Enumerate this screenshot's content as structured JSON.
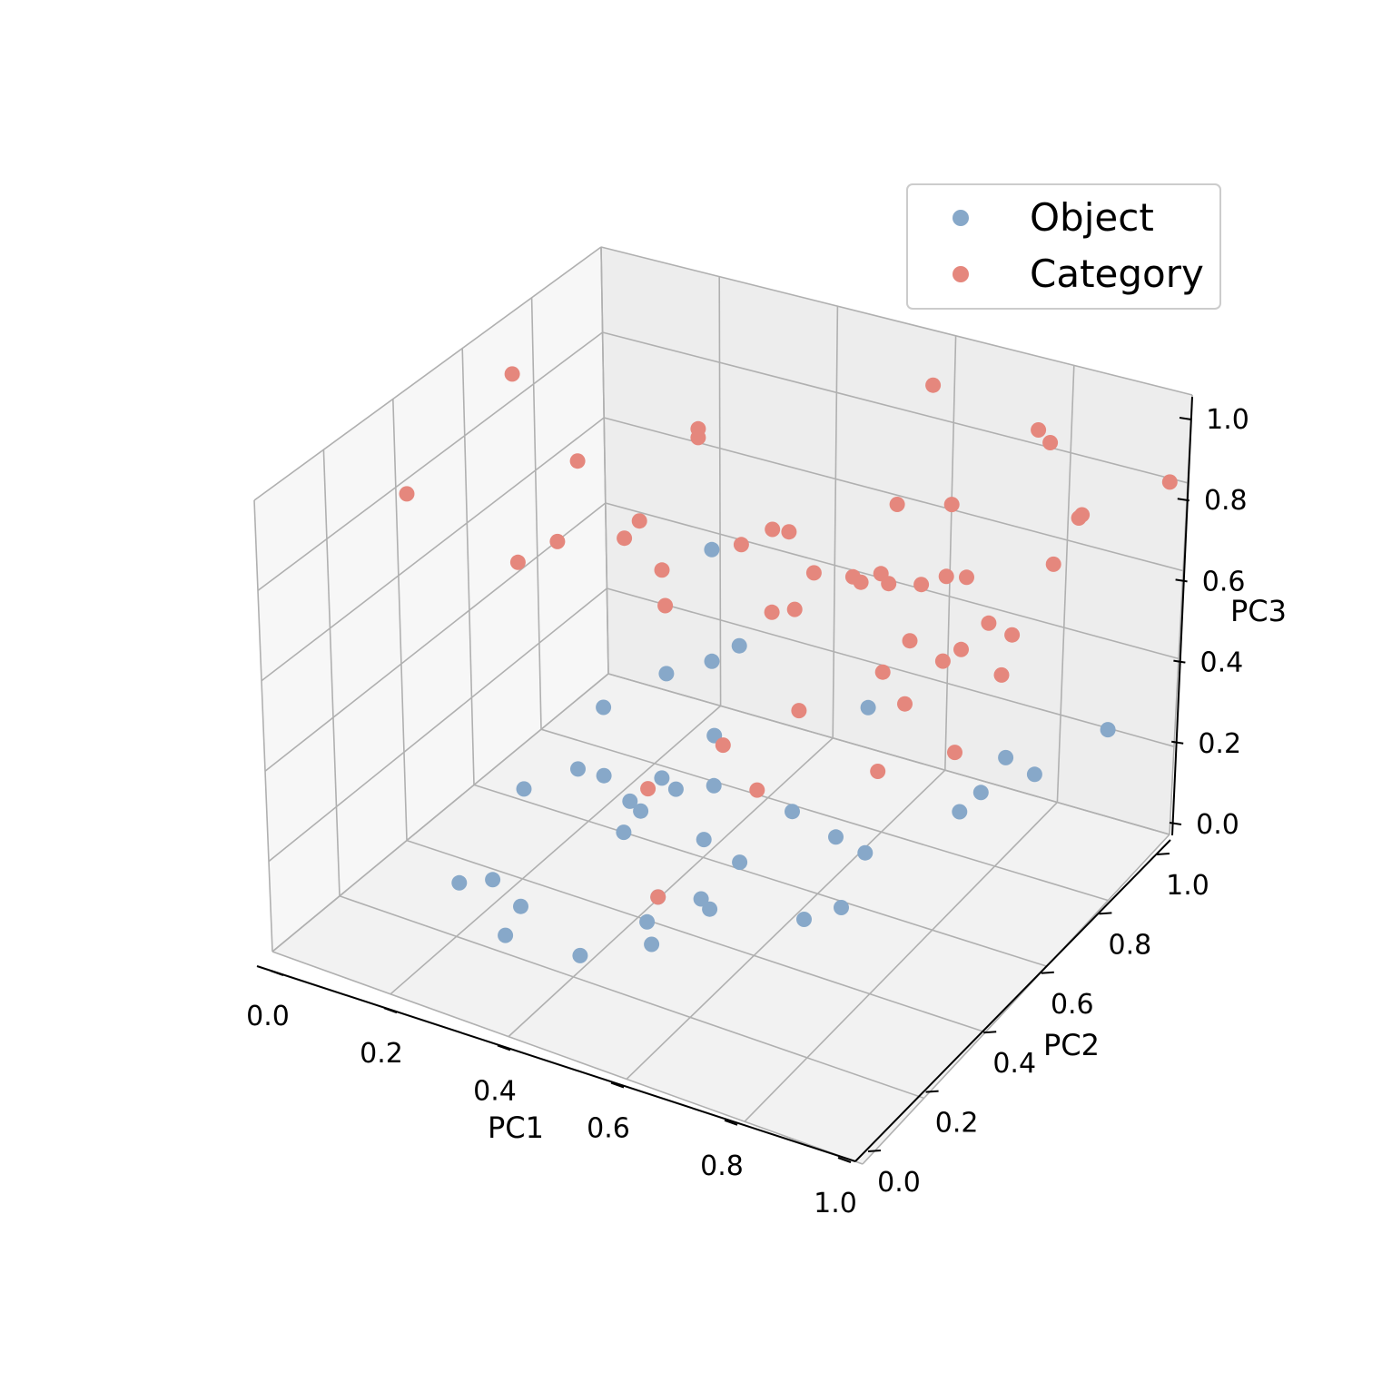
{
  "chart_data": {
    "type": "scatter",
    "projection": "3d",
    "xlabel": "PC1",
    "ylabel": "PC2",
    "zlabel": "PC3",
    "xlim": [
      0,
      1
    ],
    "ylim": [
      0,
      1
    ],
    "zlim": [
      0,
      1
    ],
    "ticks": [
      "0.0",
      "0.2",
      "0.4",
      "0.6",
      "0.8",
      "1.0"
    ],
    "grid": true,
    "legend_position": "top-right",
    "series": [
      {
        "name": "Object",
        "color": "#87a8c9",
        "points": [
          [
            0.36,
            0.56,
            0.43
          ],
          [
            0.31,
            0.38,
            0.31
          ],
          [
            0.4,
            0.71,
            0.41
          ],
          [
            0.24,
            0.58,
            0.29
          ],
          [
            0.33,
            0.75,
            0.32
          ],
          [
            0.46,
            0.41,
            0.31
          ],
          [
            0.32,
            0.44,
            0.26
          ],
          [
            0.24,
            0.34,
            0.26
          ],
          [
            0.34,
            0.74,
            0.16
          ],
          [
            0.57,
            0.71,
            0.04
          ],
          [
            0.46,
            0.25,
            0.32
          ],
          [
            0.54,
            0.86,
            0.22
          ],
          [
            0.43,
            0.58,
            0.19
          ],
          [
            0.37,
            0.43,
            0.23
          ],
          [
            0.36,
            0.48,
            0.17
          ],
          [
            0.34,
            0.58,
            0.17
          ],
          [
            0.31,
            0.12,
            0.23
          ],
          [
            0.58,
            0.27,
            0.21
          ],
          [
            0.74,
            0.49,
            0.23
          ],
          [
            0.23,
            0.16,
            0.16
          ],
          [
            0.76,
            0.9,
            0.16
          ],
          [
            0.49,
            0.28,
            0.06
          ],
          [
            0.3,
            0.22,
            0.1
          ],
          [
            0.58,
            0.39,
            0.21
          ],
          [
            0.93,
            0.91,
            0.28
          ],
          [
            0.69,
            0.51,
            0.07
          ],
          [
            0.9,
            0.73,
            0.3
          ],
          [
            0.44,
            0.15,
            0.1
          ],
          [
            0.62,
            0.48,
            0.28
          ],
          [
            0.48,
            0.46,
            0.17
          ],
          [
            0.83,
            0.69,
            0.26
          ],
          [
            0.44,
            0.39,
            0.07
          ],
          [
            0.81,
            0.66,
            0.23
          ],
          [
            0.68,
            0.41,
            0.11
          ],
          [
            0.29,
            0.19,
            0.05
          ],
          [
            0.46,
            0.32,
            0.07
          ],
          [
            0.54,
            0.37,
            0.1
          ],
          [
            0.52,
            0.41,
            0.88
          ]
        ]
      },
      {
        "name": "Category",
        "color": "#e5877d",
        "points": [
          [
            0.58,
            0.97,
            0.9
          ],
          [
            0.1,
            0.57,
            1.0
          ],
          [
            0.33,
            0.71,
            0.86
          ],
          [
            0.33,
            0.71,
            0.88
          ],
          [
            0.76,
            0.97,
            0.86
          ],
          [
            0.77,
            0.99,
            0.82
          ],
          [
            0.03,
            0.38,
            0.81
          ],
          [
            0.23,
            0.53,
            0.88
          ],
          [
            0.36,
            0.93,
            0.51
          ],
          [
            0.47,
            0.59,
            0.75
          ],
          [
            0.86,
            0.92,
            0.73
          ],
          [
            0.37,
            0.53,
            0.69
          ],
          [
            0.64,
            0.71,
            0.67
          ],
          [
            0.45,
            0.72,
            0.69
          ],
          [
            0.29,
            0.56,
            0.71
          ],
          [
            0.6,
            0.83,
            0.73
          ],
          [
            0.66,
            0.89,
            0.71
          ],
          [
            0.27,
            0.64,
            0.69
          ],
          [
            0.2,
            0.52,
            0.69
          ],
          [
            0.15,
            0.49,
            0.64
          ],
          [
            0.46,
            0.83,
            0.52
          ],
          [
            0.56,
            0.77,
            0.59
          ],
          [
            0.5,
            0.7,
            0.54
          ],
          [
            0.59,
            0.74,
            0.61
          ],
          [
            0.67,
            0.86,
            0.57
          ],
          [
            0.61,
            0.79,
            0.58
          ],
          [
            0.86,
            0.93,
            0.73
          ],
          [
            0.71,
            0.85,
            0.59
          ],
          [
            0.82,
            0.92,
            0.61
          ],
          [
            0.98,
            0.98,
            0.81
          ],
          [
            0.33,
            0.61,
            0.54
          ],
          [
            0.45,
            0.72,
            0.5
          ],
          [
            0.66,
            0.8,
            0.59
          ],
          [
            0.75,
            0.85,
            0.5
          ],
          [
            0.72,
            0.82,
            0.45
          ],
          [
            0.78,
            0.87,
            0.47
          ],
          [
            0.7,
            0.8,
            0.43
          ],
          [
            0.78,
            0.84,
            0.4
          ],
          [
            0.63,
            0.74,
            0.42
          ],
          [
            0.61,
            0.86,
            0.4
          ],
          [
            0.62,
            0.83,
            0.28
          ],
          [
            0.52,
            0.68,
            0.33
          ],
          [
            0.44,
            0.59,
            0.28
          ],
          [
            0.35,
            0.52,
            0.19
          ],
          [
            0.73,
            0.79,
            0.24
          ],
          [
            0.44,
            0.39,
            0.07
          ],
          [
            0.51,
            0.57,
            0.22
          ],
          [
            0.63,
            0.73,
            0.2
          ]
        ]
      }
    ]
  }
}
